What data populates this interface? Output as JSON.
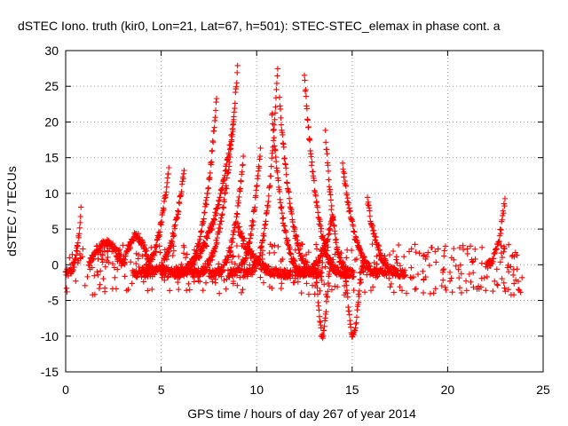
{
  "chart_data": {
    "type": "scatter",
    "title": "dSTEC Iono. truth (kir0, Lon=21, Lat=67, h=501): STEC-STEC_elemax in phase cont. a",
    "xlabel": "GPS time / hours of day 267 of year 2014",
    "ylabel": "dSTEC  / TECUs",
    "xlim": [
      0,
      25
    ],
    "ylim": [
      -15,
      30
    ],
    "x_ticks": [
      "0",
      "5",
      "10",
      "15",
      "20",
      "25"
    ],
    "y_ticks": [
      "-15",
      "-10",
      "-5",
      "0",
      "5",
      "10",
      "15",
      "20",
      "25",
      "30"
    ],
    "grid": true,
    "marker": "+",
    "series_color": "#ff0000",
    "arcs": [
      {
        "t0": 0.0,
        "t1": 0.8,
        "peak": 7.5,
        "at": "end"
      },
      {
        "t0": 1.2,
        "t1": 3.0,
        "peak": 3.0,
        "at": "mid"
      },
      {
        "t0": 3.0,
        "t1": 4.4,
        "peak": 4.0,
        "at": "mid"
      },
      {
        "t0": 3.5,
        "t1": 5.4,
        "peak": 13.8,
        "at": "end"
      },
      {
        "t0": 4.1,
        "t1": 6.2,
        "peak": 13.5,
        "at": "end"
      },
      {
        "t0": 5.7,
        "t1": 7.9,
        "peak": 23.3,
        "at": "end"
      },
      {
        "t0": 6.5,
        "t1": 9.0,
        "peak": 27.5,
        "at": "end"
      },
      {
        "t0": 5.0,
        "t1": 8.8,
        "peak": 20.0,
        "at": "end"
      },
      {
        "t0": 7.5,
        "t1": 9.3,
        "peak": 15.0,
        "at": "end"
      },
      {
        "t0": 8.5,
        "t1": 10.2,
        "peak": 16.2,
        "at": "end"
      },
      {
        "t0": 9.3,
        "t1": 11.1,
        "peak": 27.5,
        "at": "end"
      },
      {
        "t0": 10.8,
        "t1": 12.8,
        "peak": 21.5,
        "at": "start"
      },
      {
        "t0": 11.2,
        "t1": 13.4,
        "peak": 23.0,
        "at": "start"
      },
      {
        "t0": 12.5,
        "t1": 14.8,
        "peak": 26.5,
        "at": "start"
      },
      {
        "t0": 13.6,
        "t1": 15.1,
        "peak": 18.5,
        "at": "start"
      },
      {
        "t0": 14.5,
        "t1": 16.8,
        "peak": 14.0,
        "at": "start"
      },
      {
        "t0": 15.8,
        "t1": 17.8,
        "peak": 9.0,
        "at": "start"
      },
      {
        "t0": 9.0,
        "t1": 11.8,
        "peak": 5.5,
        "at": "start"
      },
      {
        "t0": 12.0,
        "t1": 14.0,
        "peak": 7.0,
        "at": "end"
      }
    ],
    "dips": [
      {
        "t0": 13.0,
        "t1": 13.9,
        "min": -10.0
      },
      {
        "t0": 14.5,
        "t1": 15.6,
        "min": -10.0
      }
    ],
    "noise_band": {
      "t0": 0.0,
      "t1": 24.0,
      "lo": -4.0,
      "hi": 5.5
    },
    "late_bump": {
      "t0": 22.0,
      "t1": 23.0,
      "peak": 9.2
    }
  }
}
